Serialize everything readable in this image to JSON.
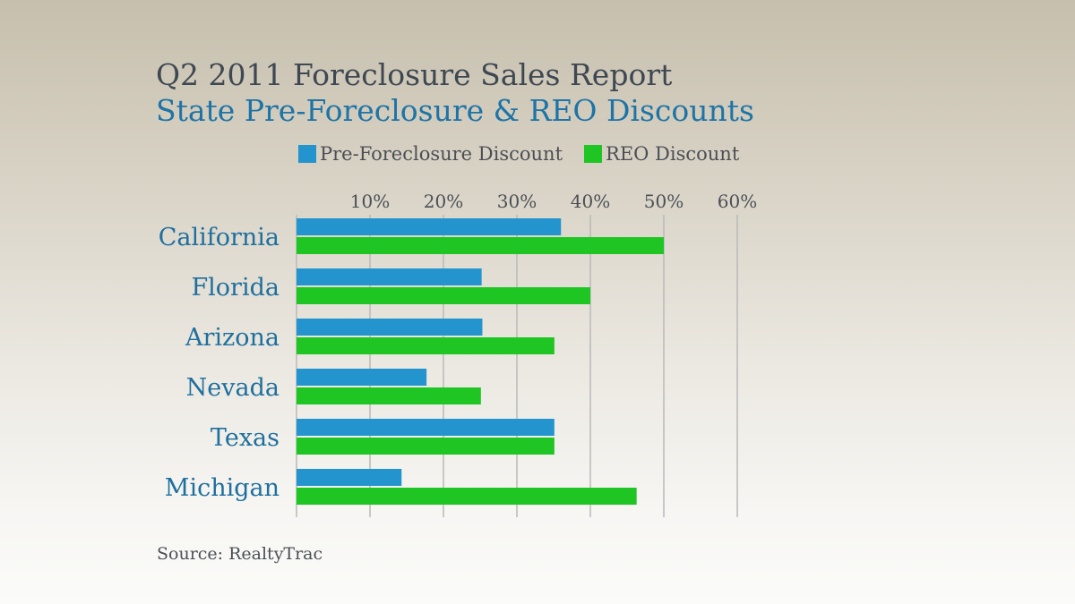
{
  "title": "Q2 2011 Foreclosure Sales Report",
  "subtitle": "State Pre-Foreclosure & REO Discounts",
  "source": "Source: RealtyTrac",
  "colors": {
    "pre_foreclosure": "#2494cf",
    "reo": "#1ec523",
    "title": "#3f4852",
    "subtitle": "#1e74a6",
    "category_label": "#1e6f9e",
    "gridline": "#b9b9b9"
  },
  "chart_data": {
    "type": "bar",
    "orientation": "horizontal",
    "title": "Q2 2011 Foreclosure Sales Report",
    "subtitle": "State Pre-Foreclosure & REO Discounts",
    "categories": [
      "California",
      "Florida",
      "Arizona",
      "Nevada",
      "Texas",
      "Michigan"
    ],
    "series": [
      {
        "name": "Pre-Foreclosure Discount",
        "values": [
          36,
          25.2,
          25.3,
          17.7,
          35.1,
          14.3
        ]
      },
      {
        "name": "REO Discount",
        "values": [
          50,
          40,
          35.1,
          25.1,
          35.1,
          46.3
        ]
      }
    ],
    "xlim": [
      0,
      60
    ],
    "xticks": [
      10,
      20,
      30,
      40,
      50,
      60
    ],
    "xtick_labels": [
      "10%",
      "20%",
      "30%",
      "40%",
      "50%",
      "60%"
    ],
    "xaxis_position": "top",
    "grid": true,
    "legend_position": "top"
  }
}
